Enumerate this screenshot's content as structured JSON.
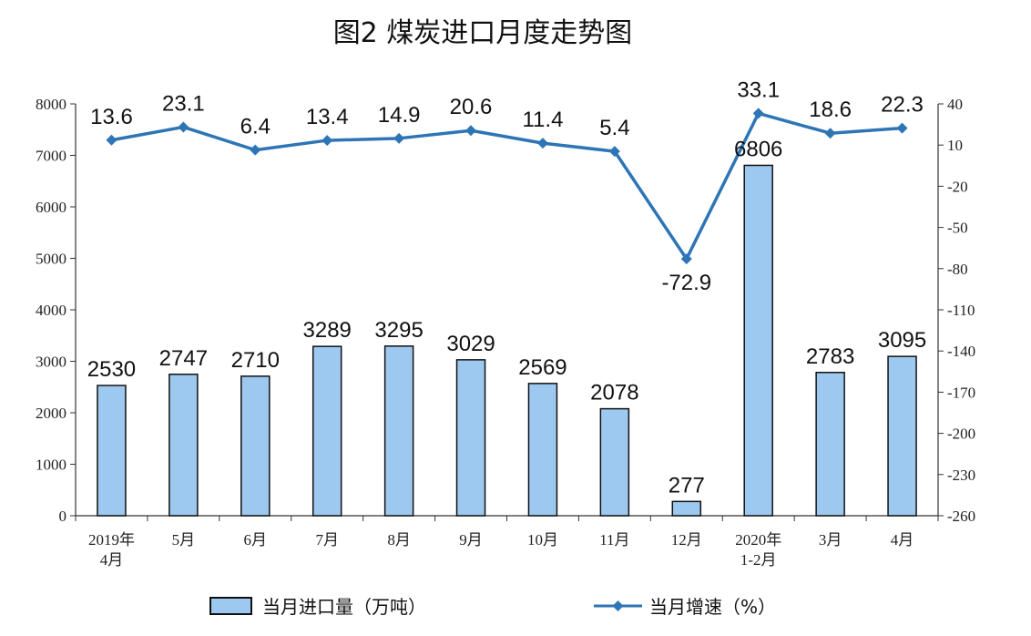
{
  "chart_data": {
    "type": "bar",
    "title": "图2  煤炭进口月度走势图",
    "categories": [
      [
        "2019年",
        "4月"
      ],
      [
        "5月"
      ],
      [
        "6月"
      ],
      [
        "7月"
      ],
      [
        "8月"
      ],
      [
        "9月"
      ],
      [
        "10月"
      ],
      [
        "11月"
      ],
      [
        "12月"
      ],
      [
        "2020年",
        "1-2月"
      ],
      [
        "3月"
      ],
      [
        "4月"
      ]
    ],
    "series": [
      {
        "name": "当月进口量（万吨）",
        "type": "bar",
        "axis": "left",
        "color": "#9dc8f0",
        "values": [
          2530,
          2747,
          2710,
          3289,
          3295,
          3029,
          2569,
          2078,
          277,
          6806,
          2783,
          3095
        ]
      },
      {
        "name": "当月增速（%）",
        "type": "line",
        "axis": "right",
        "color": "#2e75b6",
        "values": [
          13.6,
          23.1,
          6.4,
          13.4,
          14.9,
          20.6,
          11.4,
          5.4,
          -72.9,
          33.1,
          18.6,
          22.3
        ]
      }
    ],
    "y_left": {
      "ylim": [
        0,
        8000
      ],
      "ticks": [
        "0",
        "1000",
        "2000",
        "3000",
        "4000",
        "5000",
        "6000",
        "7000",
        "8000"
      ]
    },
    "y_right": {
      "ylim": [
        -260,
        40
      ],
      "ticks": [
        "-260",
        "-230",
        "-200",
        "-170",
        "-140",
        "-110",
        "-80",
        "-50",
        "-20",
        "10",
        "40"
      ]
    },
    "legend_position": "bottom"
  }
}
